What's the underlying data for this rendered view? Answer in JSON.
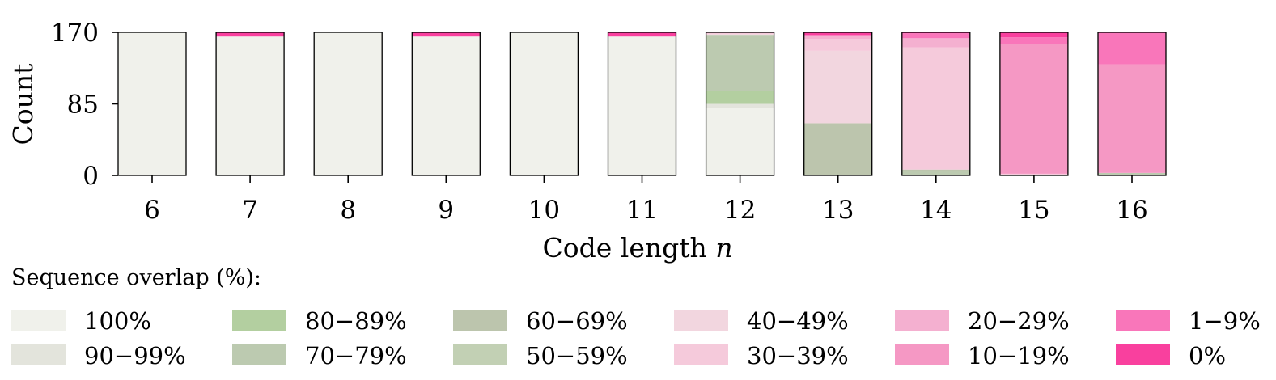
{
  "chart_data": {
    "type": "bar",
    "stacked": true,
    "categories": [
      "6",
      "7",
      "8",
      "9",
      "10",
      "11",
      "12",
      "13",
      "14",
      "15",
      "16"
    ],
    "xlabel": "Code length n",
    "ylabel": "Count",
    "ylim": [
      0,
      170
    ],
    "yticks": [
      0,
      85,
      170
    ],
    "legend": {
      "title": "Sequence overlap (%):",
      "position": "bottom"
    },
    "series": [
      {
        "name": "100%",
        "color": "#f0f1eb",
        "values": [
          170,
          165,
          170,
          165,
          170,
          165,
          80,
          0,
          0,
          0,
          0
        ]
      },
      {
        "name": "90−99%",
        "color": "#e3e4dc",
        "values": [
          0,
          0,
          0,
          0,
          0,
          0,
          5,
          0,
          0,
          0,
          0
        ]
      },
      {
        "name": "80−89%",
        "color": "#b3cfa0",
        "values": [
          0,
          0,
          0,
          0,
          0,
          0,
          15,
          0,
          0,
          0,
          0
        ]
      },
      {
        "name": "70−79%",
        "color": "#bccab0",
        "values": [
          0,
          0,
          0,
          0,
          0,
          0,
          67,
          0,
          5,
          0,
          3
        ]
      },
      {
        "name": "60−69%",
        "color": "#bcc5ad",
        "values": [
          0,
          0,
          0,
          0,
          0,
          0,
          0,
          62,
          2,
          0,
          0
        ]
      },
      {
        "name": "50−59%",
        "color": "#c2d0b4",
        "values": [
          0,
          0,
          0,
          0,
          0,
          0,
          0,
          0,
          0,
          0,
          0
        ]
      },
      {
        "name": "40−49%",
        "color": "#f2d6df",
        "values": [
          0,
          0,
          0,
          0,
          0,
          0,
          1,
          86,
          0,
          0,
          0
        ]
      },
      {
        "name": "30−39%",
        "color": "#f5cadb",
        "values": [
          0,
          0,
          0,
          0,
          0,
          0,
          2,
          14,
          145,
          2,
          0
        ]
      },
      {
        "name": "20−29%",
        "color": "#f4b0d0",
        "values": [
          0,
          0,
          0,
          0,
          0,
          0,
          0,
          4,
          11,
          0,
          0
        ]
      },
      {
        "name": "10−19%",
        "color": "#f598c4",
        "values": [
          0,
          0,
          0,
          0,
          0,
          0,
          0,
          0,
          0,
          154,
          129
        ]
      },
      {
        "name": "1−9%",
        "color": "#f976ba",
        "values": [
          0,
          0,
          0,
          0,
          0,
          0,
          0,
          1,
          6,
          8,
          38
        ]
      },
      {
        "name": "0%",
        "color": "#f9409e",
        "values": [
          0,
          5,
          0,
          5,
          0,
          5,
          0,
          3,
          1,
          6,
          0
        ]
      }
    ]
  }
}
